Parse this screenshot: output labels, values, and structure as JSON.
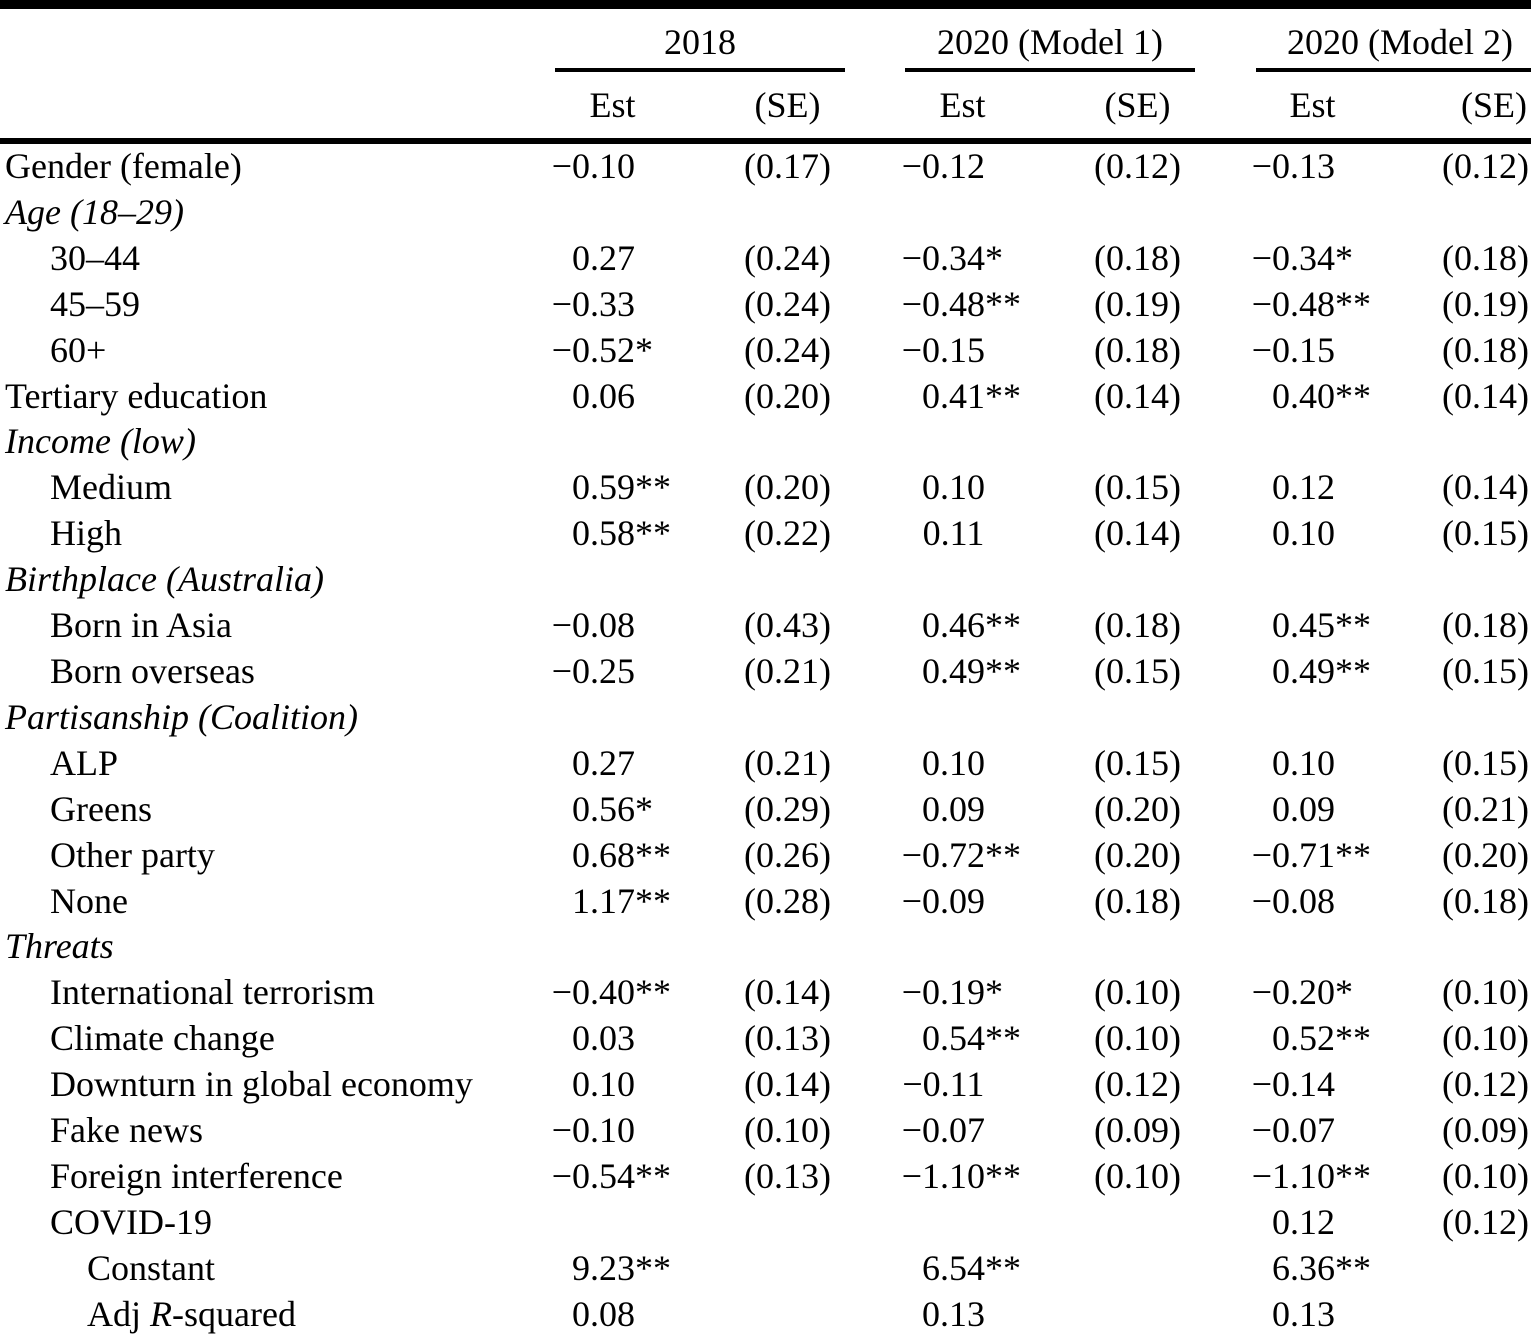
{
  "colors": {
    "text": "#000000",
    "background": "#ffffff",
    "rule": "#000000"
  },
  "table": {
    "groups": [
      {
        "label": "2018"
      },
      {
        "label": "2020 (Model 1)"
      },
      {
        "label": "2020 (Model 2)"
      }
    ],
    "subheaders": [
      "Est",
      "(SE)",
      "Est",
      "(SE)",
      "Est",
      "(SE)"
    ],
    "rows": [
      {
        "parts": [
          {
            "t": "Gender (female)",
            "i": 0
          }
        ],
        "indent": 0,
        "cells": [
          "−0.10",
          "(0.17)",
          "−0.12",
          "(0.12)",
          "−0.13",
          "(0.12)"
        ]
      },
      {
        "parts": [
          {
            "t": "Age (18–29)",
            "i": 1
          }
        ],
        "indent": 0,
        "cells": [
          "",
          "",
          "",
          "",
          "",
          ""
        ]
      },
      {
        "parts": [
          {
            "t": "30–44",
            "i": 0
          }
        ],
        "indent": 1,
        "cells": [
          "0.27",
          "(0.24)",
          "−0.34*",
          "(0.18)",
          "−0.34*",
          "(0.18)"
        ]
      },
      {
        "parts": [
          {
            "t": "45–59",
            "i": 0
          }
        ],
        "indent": 1,
        "cells": [
          "−0.33",
          "(0.24)",
          "−0.48**",
          "(0.19)",
          "−0.48**",
          "(0.19)"
        ]
      },
      {
        "parts": [
          {
            "t": "60+",
            "i": 0
          }
        ],
        "indent": 1,
        "cells": [
          "−0.52*",
          "(0.24)",
          "−0.15",
          "(0.18)",
          "−0.15",
          "(0.18)"
        ]
      },
      {
        "parts": [
          {
            "t": "Tertiary education",
            "i": 0
          }
        ],
        "indent": 0,
        "cells": [
          "0.06",
          "(0.20)",
          "0.41**",
          "(0.14)",
          "0.40**",
          "(0.14)"
        ]
      },
      {
        "parts": [
          {
            "t": "Income (low)",
            "i": 1
          }
        ],
        "indent": 0,
        "cells": [
          "",
          "",
          "",
          "",
          "",
          ""
        ]
      },
      {
        "parts": [
          {
            "t": "Medium",
            "i": 0
          }
        ],
        "indent": 1,
        "cells": [
          "0.59**",
          "(0.20)",
          "0.10",
          "(0.15)",
          "0.12",
          "(0.14)"
        ]
      },
      {
        "parts": [
          {
            "t": "High",
            "i": 0
          }
        ],
        "indent": 1,
        "cells": [
          "0.58**",
          "(0.22)",
          "0.11",
          "(0.14)",
          "0.10",
          "(0.15)"
        ]
      },
      {
        "parts": [
          {
            "t": "Birthplace (Australia)",
            "i": 1
          }
        ],
        "indent": 0,
        "cells": [
          "",
          "",
          "",
          "",
          "",
          ""
        ]
      },
      {
        "parts": [
          {
            "t": "Born in Asia",
            "i": 0
          }
        ],
        "indent": 1,
        "cells": [
          "−0.08",
          "(0.43)",
          "0.46**",
          "(0.18)",
          "0.45**",
          "(0.18)"
        ]
      },
      {
        "parts": [
          {
            "t": "Born overseas",
            "i": 0
          }
        ],
        "indent": 1,
        "cells": [
          "−0.25",
          "(0.21)",
          "0.49**",
          "(0.15)",
          "0.49**",
          "(0.15)"
        ]
      },
      {
        "parts": [
          {
            "t": "Partisanship (Coalition)",
            "i": 1
          }
        ],
        "indent": 0,
        "cells": [
          "",
          "",
          "",
          "",
          "",
          ""
        ]
      },
      {
        "parts": [
          {
            "t": "ALP",
            "i": 0
          }
        ],
        "indent": 1,
        "cells": [
          "0.27",
          "(0.21)",
          "0.10",
          "(0.15)",
          "0.10",
          "(0.15)"
        ]
      },
      {
        "parts": [
          {
            "t": "Greens",
            "i": 0
          }
        ],
        "indent": 1,
        "cells": [
          "0.56*",
          "(0.29)",
          "0.09",
          "(0.20)",
          "0.09",
          "(0.21)"
        ]
      },
      {
        "parts": [
          {
            "t": "Other party",
            "i": 0
          }
        ],
        "indent": 1,
        "cells": [
          "0.68**",
          "(0.26)",
          "−0.72**",
          "(0.20)",
          "−0.71**",
          "(0.20)"
        ]
      },
      {
        "parts": [
          {
            "t": "None",
            "i": 0
          }
        ],
        "indent": 1,
        "cells": [
          "1.17**",
          "(0.28)",
          "−0.09",
          "(0.18)",
          "−0.08",
          "(0.18)"
        ]
      },
      {
        "parts": [
          {
            "t": "Threats",
            "i": 1
          }
        ],
        "indent": 0,
        "cells": [
          "",
          "",
          "",
          "",
          "",
          ""
        ]
      },
      {
        "parts": [
          {
            "t": "International terrorism",
            "i": 0
          }
        ],
        "indent": 1,
        "cells": [
          "−0.40**",
          "(0.14)",
          "−0.19*",
          "(0.10)",
          "−0.20*",
          "(0.10)"
        ]
      },
      {
        "parts": [
          {
            "t": "Climate change",
            "i": 0
          }
        ],
        "indent": 1,
        "cells": [
          "0.03",
          "(0.13)",
          "0.54**",
          "(0.10)",
          "0.52**",
          "(0.10)"
        ]
      },
      {
        "parts": [
          {
            "t": "Downturn in global economy",
            "i": 0
          }
        ],
        "indent": 1,
        "cells": [
          "0.10",
          "(0.14)",
          "−0.11",
          "(0.12)",
          "−0.14",
          "(0.12)"
        ]
      },
      {
        "parts": [
          {
            "t": "Fake news",
            "i": 0
          }
        ],
        "indent": 1,
        "cells": [
          "−0.10",
          "(0.10)",
          "−0.07",
          "(0.09)",
          "−0.07",
          "(0.09)"
        ]
      },
      {
        "parts": [
          {
            "t": "Foreign interference",
            "i": 0
          }
        ],
        "indent": 1,
        "cells": [
          "−0.54**",
          "(0.13)",
          "−1.10**",
          "(0.10)",
          "−1.10**",
          "(0.10)"
        ]
      },
      {
        "parts": [
          {
            "t": "COVID-19",
            "i": 0
          }
        ],
        "indent": 1,
        "cells": [
          "",
          "",
          "",
          "",
          "0.12",
          "(0.12)"
        ]
      },
      {
        "parts": [
          {
            "t": "Constant",
            "i": 0
          }
        ],
        "indent": 2,
        "cells": [
          "9.23**",
          "",
          "6.54**",
          "",
          "6.36**",
          ""
        ]
      },
      {
        "parts": [
          {
            "t": "Adj ",
            "i": 0
          },
          {
            "t": "R",
            "i": 1
          },
          {
            "t": "-squared",
            "i": 0
          }
        ],
        "indent": 2,
        "cells": [
          "0.08",
          "",
          "0.13",
          "",
          "0.13",
          ""
        ]
      }
    ]
  }
}
